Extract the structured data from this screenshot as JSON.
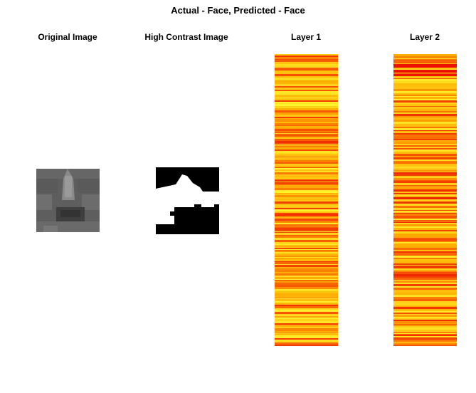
{
  "figure": {
    "title": "Actual - Face, Predicted - Face"
  },
  "panels": {
    "original": {
      "title": "Original Image"
    },
    "high_contrast": {
      "title": "High Contrast Image"
    },
    "layer1": {
      "title": "Layer 1"
    },
    "layer2": {
      "title": "Layer 2"
    }
  },
  "colors": {
    "background": "#ffffff",
    "heat_low": "#ffff33",
    "heat_mid": "#ffaa00",
    "heat_high": "#ee1100"
  }
}
